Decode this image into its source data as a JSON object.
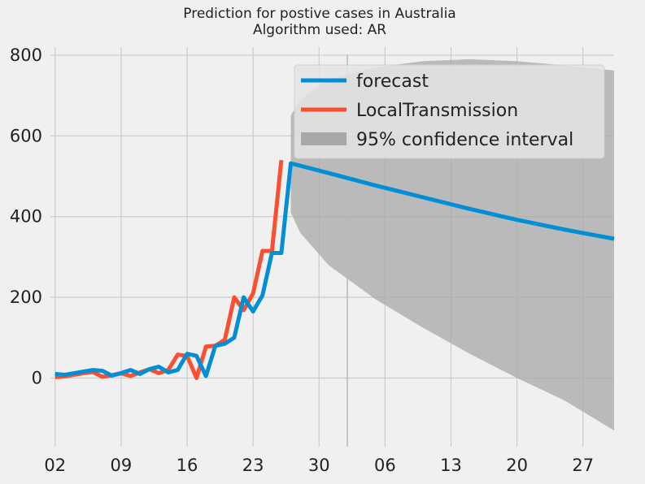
{
  "chart_data": {
    "type": "line",
    "title": "Prediction for postive cases in Australia",
    "subtitle": "Algorithm used: AR",
    "xlabel": "",
    "ylabel": "",
    "x_tick_labels": [
      "02",
      "09",
      "16",
      "23",
      "30",
      "06",
      "13",
      "20",
      "27"
    ],
    "y_tick_labels": [
      "0",
      "200",
      "400",
      "600",
      "800"
    ],
    "y_ticks": [
      0,
      200,
      400,
      600,
      800
    ],
    "ylim": [
      -170,
      820
    ],
    "xlim": [
      0.5,
      60.3
    ],
    "grid": true,
    "legend_position": "top-right",
    "colors": {
      "background": "#f0f0f0",
      "grid": "#cbcbcb",
      "forecast": "#008fd5",
      "LocalTransmission": "#fc4f30",
      "confidence": "#a8a8a8"
    },
    "legend": [
      {
        "label": "forecast",
        "key": "forecast"
      },
      {
        "label": "LocalTransmission",
        "key": "LocalTransmission"
      },
      {
        "label": "95% confidence interval",
        "key": "confidence"
      }
    ],
    "series": [
      {
        "name": "LocalTransmission",
        "key": "LocalTransmission",
        "x": [
          1,
          2,
          3,
          4,
          5,
          6,
          7,
          8,
          9,
          10,
          11,
          12,
          13,
          14,
          15,
          16,
          17,
          18,
          19,
          20,
          21,
          22,
          23,
          24,
          25
        ],
        "y": [
          2,
          4,
          8,
          12,
          15,
          3,
          7,
          12,
          5,
          14,
          22,
          12,
          20,
          58,
          55,
          0,
          78,
          80,
          95,
          200,
          168,
          210,
          315,
          315,
          540
        ]
      },
      {
        "name": "forecast",
        "key": "forecast",
        "x": [
          1,
          2,
          3,
          4,
          5,
          6,
          7,
          8,
          9,
          10,
          11,
          12,
          13,
          14,
          15,
          16,
          17,
          18,
          19,
          20,
          21,
          22,
          23,
          24,
          25,
          26,
          30,
          35,
          40,
          45,
          50,
          55,
          60.3
        ],
        "y": [
          10,
          8,
          12,
          16,
          20,
          18,
          6,
          12,
          20,
          10,
          22,
          28,
          14,
          20,
          60,
          55,
          5,
          80,
          85,
          100,
          200,
          165,
          205,
          310,
          310,
          532,
          508,
          477,
          448,
          419,
          392,
          368,
          345
        ]
      }
    ],
    "confidence_interval": {
      "x": [
        26,
        27,
        30,
        35,
        40,
        45,
        50,
        55,
        60.3
      ],
      "upper": [
        650,
        690,
        740,
        770,
        785,
        790,
        785,
        775,
        762
      ],
      "lower": [
        410,
        360,
        280,
        195,
        125,
        60,
        0,
        -55,
        -130
      ]
    },
    "forecast_start_vline_x": 32
  }
}
